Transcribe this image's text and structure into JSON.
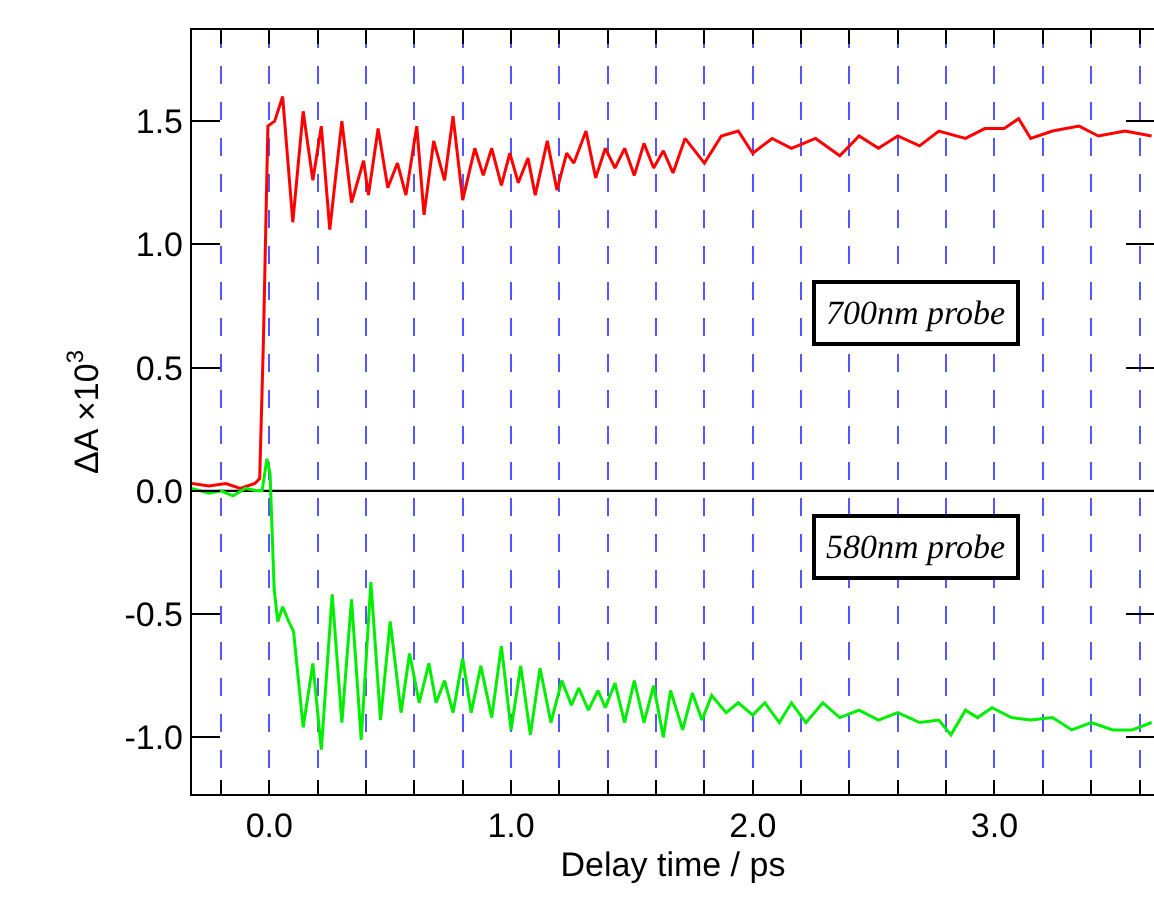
{
  "chart_data": {
    "type": "line",
    "xlabel": "Delay time / ps",
    "ylabel": "ΔA ×10$^{3}$",
    "xlim": [
      -0.32,
      3.66
    ],
    "ylim": [
      -1.23,
      1.87
    ],
    "xticks": [
      {
        "value": -0.2,
        "label": null
      },
      {
        "value": 0,
        "label": "0.0"
      },
      {
        "value": 0.2,
        "label": null
      },
      {
        "value": 0.4,
        "label": null
      },
      {
        "value": 0.6,
        "label": null
      },
      {
        "value": 0.8,
        "label": null
      },
      {
        "value": 1,
        "label": "1.0"
      },
      {
        "value": 1.2,
        "label": null
      },
      {
        "value": 1.4,
        "label": null
      },
      {
        "value": 1.6,
        "label": null
      },
      {
        "value": 1.8,
        "label": null
      },
      {
        "value": 2,
        "label": "2.0"
      },
      {
        "value": 2.2,
        "label": null
      },
      {
        "value": 2.4,
        "label": null
      },
      {
        "value": 2.6,
        "label": null
      },
      {
        "value": 2.8,
        "label": null
      },
      {
        "value": 3,
        "label": "3.0"
      },
      {
        "value": 3.2,
        "label": null
      },
      {
        "value": 3.4,
        "label": null
      },
      {
        "value": 3.6,
        "label": null
      }
    ],
    "yticks": [
      {
        "value": -1,
        "label": "-1.0"
      },
      -0.5,
      {
        "value": 0,
        "label": "0.0"
      },
      0.5,
      {
        "value": 1,
        "label": "1.0"
      },
      1.5
    ],
    "grid": "x",
    "marker": "none",
    "line_style": "solid",
    "ref_lines": [
      {
        "axis": "y",
        "value": 0,
        "color": "#000000"
      }
    ],
    "annotations": [
      "700nm probe",
      "580nm probe"
    ],
    "series": [
      {
        "color": "#ff0000",
        "x": [
          -0.32,
          -0.25,
          -0.18,
          -0.12,
          -0.06,
          -0.04,
          -0.025,
          -0.006,
          0.022,
          0.055,
          0.097,
          0.14,
          0.18,
          0.215,
          0.25,
          0.3,
          0.34,
          0.39,
          0.41,
          0.45,
          0.49,
          0.53,
          0.565,
          0.61,
          0.64,
          0.68,
          0.725,
          0.76,
          0.8,
          0.85,
          0.885,
          0.92,
          0.96,
          0.995,
          1.03,
          1.07,
          1.1,
          1.15,
          1.19,
          1.23,
          1.26,
          1.31,
          1.35,
          1.39,
          1.43,
          1.47,
          1.51,
          1.55,
          1.59,
          1.63,
          1.67,
          1.72,
          1.8,
          1.87,
          1.94,
          2.0,
          2.08,
          2.16,
          2.26,
          2.36,
          2.44,
          2.52,
          2.6,
          2.69,
          2.77,
          2.88,
          2.96,
          3.04,
          3.1,
          3.15,
          3.24,
          3.35,
          3.43,
          3.54,
          3.65
        ],
        "values": [
          0.03,
          0.02,
          0.03,
          0.01,
          0.03,
          0.05,
          0.59,
          1.48,
          1.5,
          1.6,
          1.09,
          1.54,
          1.26,
          1.48,
          1.06,
          1.5,
          1.17,
          1.34,
          1.2,
          1.47,
          1.23,
          1.33,
          1.2,
          1.48,
          1.12,
          1.42,
          1.26,
          1.52,
          1.18,
          1.39,
          1.28,
          1.39,
          1.24,
          1.37,
          1.25,
          1.35,
          1.2,
          1.42,
          1.22,
          1.37,
          1.33,
          1.46,
          1.27,
          1.39,
          1.31,
          1.39,
          1.28,
          1.41,
          1.31,
          1.38,
          1.29,
          1.43,
          1.33,
          1.44,
          1.46,
          1.37,
          1.43,
          1.39,
          1.43,
          1.36,
          1.44,
          1.39,
          1.44,
          1.4,
          1.46,
          1.43,
          1.47,
          1.47,
          1.51,
          1.43,
          1.46,
          1.48,
          1.44,
          1.46,
          1.44
        ]
      },
      {
        "color": "#00ee00",
        "x": [
          -0.32,
          -0.25,
          -0.2,
          -0.15,
          -0.1,
          -0.05,
          -0.03,
          -0.01,
          0.003,
          0.02,
          0.035,
          0.055,
          0.08,
          0.1,
          0.14,
          0.18,
          0.215,
          0.26,
          0.3,
          0.34,
          0.38,
          0.42,
          0.46,
          0.5,
          0.545,
          0.58,
          0.62,
          0.66,
          0.69,
          0.725,
          0.76,
          0.8,
          0.835,
          0.875,
          0.92,
          0.96,
          1.0,
          1.04,
          1.08,
          1.12,
          1.165,
          1.21,
          1.25,
          1.28,
          1.32,
          1.36,
          1.39,
          1.43,
          1.47,
          1.51,
          1.55,
          1.59,
          1.63,
          1.66,
          1.71,
          1.75,
          1.79,
          1.83,
          1.89,
          1.94,
          2.0,
          2.05,
          2.11,
          2.16,
          2.22,
          2.29,
          2.36,
          2.44,
          2.52,
          2.6,
          2.69,
          2.77,
          2.82,
          2.88,
          2.93,
          2.99,
          3.07,
          3.15,
          3.24,
          3.32,
          3.4,
          3.49,
          3.57,
          3.65
        ],
        "values": [
          0.01,
          -0.01,
          0.0,
          -0.02,
          0.01,
          0.0,
          0.0,
          0.13,
          0.07,
          -0.4,
          -0.53,
          -0.47,
          -0.53,
          -0.57,
          -0.96,
          -0.7,
          -1.05,
          -0.42,
          -0.94,
          -0.44,
          -1.01,
          -0.37,
          -0.93,
          -0.53,
          -0.9,
          -0.66,
          -0.86,
          -0.7,
          -0.86,
          -0.77,
          -0.9,
          -0.68,
          -0.9,
          -0.71,
          -0.92,
          -0.63,
          -0.97,
          -0.71,
          -0.99,
          -0.72,
          -0.94,
          -0.77,
          -0.87,
          -0.8,
          -0.89,
          -0.81,
          -0.88,
          -0.78,
          -0.94,
          -0.77,
          -0.94,
          -0.79,
          -1.0,
          -0.81,
          -0.97,
          -0.82,
          -0.93,
          -0.83,
          -0.9,
          -0.86,
          -0.91,
          -0.86,
          -0.94,
          -0.86,
          -0.94,
          -0.86,
          -0.92,
          -0.89,
          -0.93,
          -0.9,
          -0.94,
          -0.93,
          -0.99,
          -0.89,
          -0.92,
          -0.88,
          -0.92,
          -0.93,
          -0.92,
          -0.97,
          -0.94,
          -0.97,
          -0.97,
          -0.94
        ]
      }
    ]
  }
}
